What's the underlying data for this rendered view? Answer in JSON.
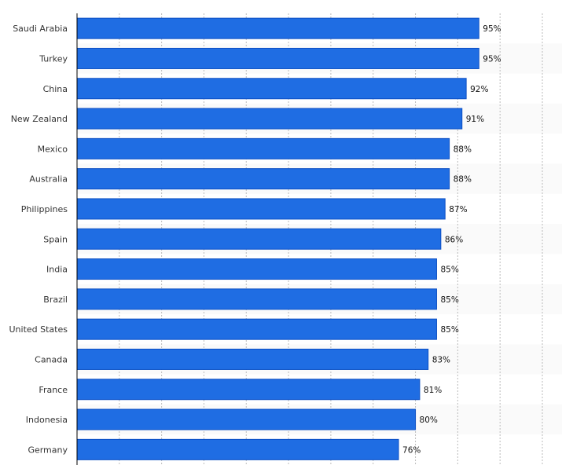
{
  "chart_data": {
    "type": "bar",
    "orientation": "horizontal",
    "title": "",
    "xlabel": "",
    "ylabel": "",
    "xlim": [
      0,
      110
    ],
    "grid": true,
    "categories": [
      "Saudi Arabia",
      "Turkey",
      "China",
      "New Zealand",
      "Mexico",
      "Australia",
      "Philippines",
      "Spain",
      "India",
      "Brazil",
      "United States",
      "Canada",
      "France",
      "Indonesia",
      "Germany"
    ],
    "values": [
      95,
      95,
      92,
      91,
      88,
      88,
      87,
      86,
      85,
      85,
      85,
      83,
      81,
      80,
      76
    ],
    "labels": [
      "95%",
      "95%",
      "92%",
      "91%",
      "88%",
      "88%",
      "87%",
      "86%",
      "85%",
      "85%",
      "85%",
      "83%",
      "81%",
      "80%",
      "76%"
    ],
    "bar_color": "#1f6de3",
    "bar_border_color": "#0b4fc4"
  }
}
